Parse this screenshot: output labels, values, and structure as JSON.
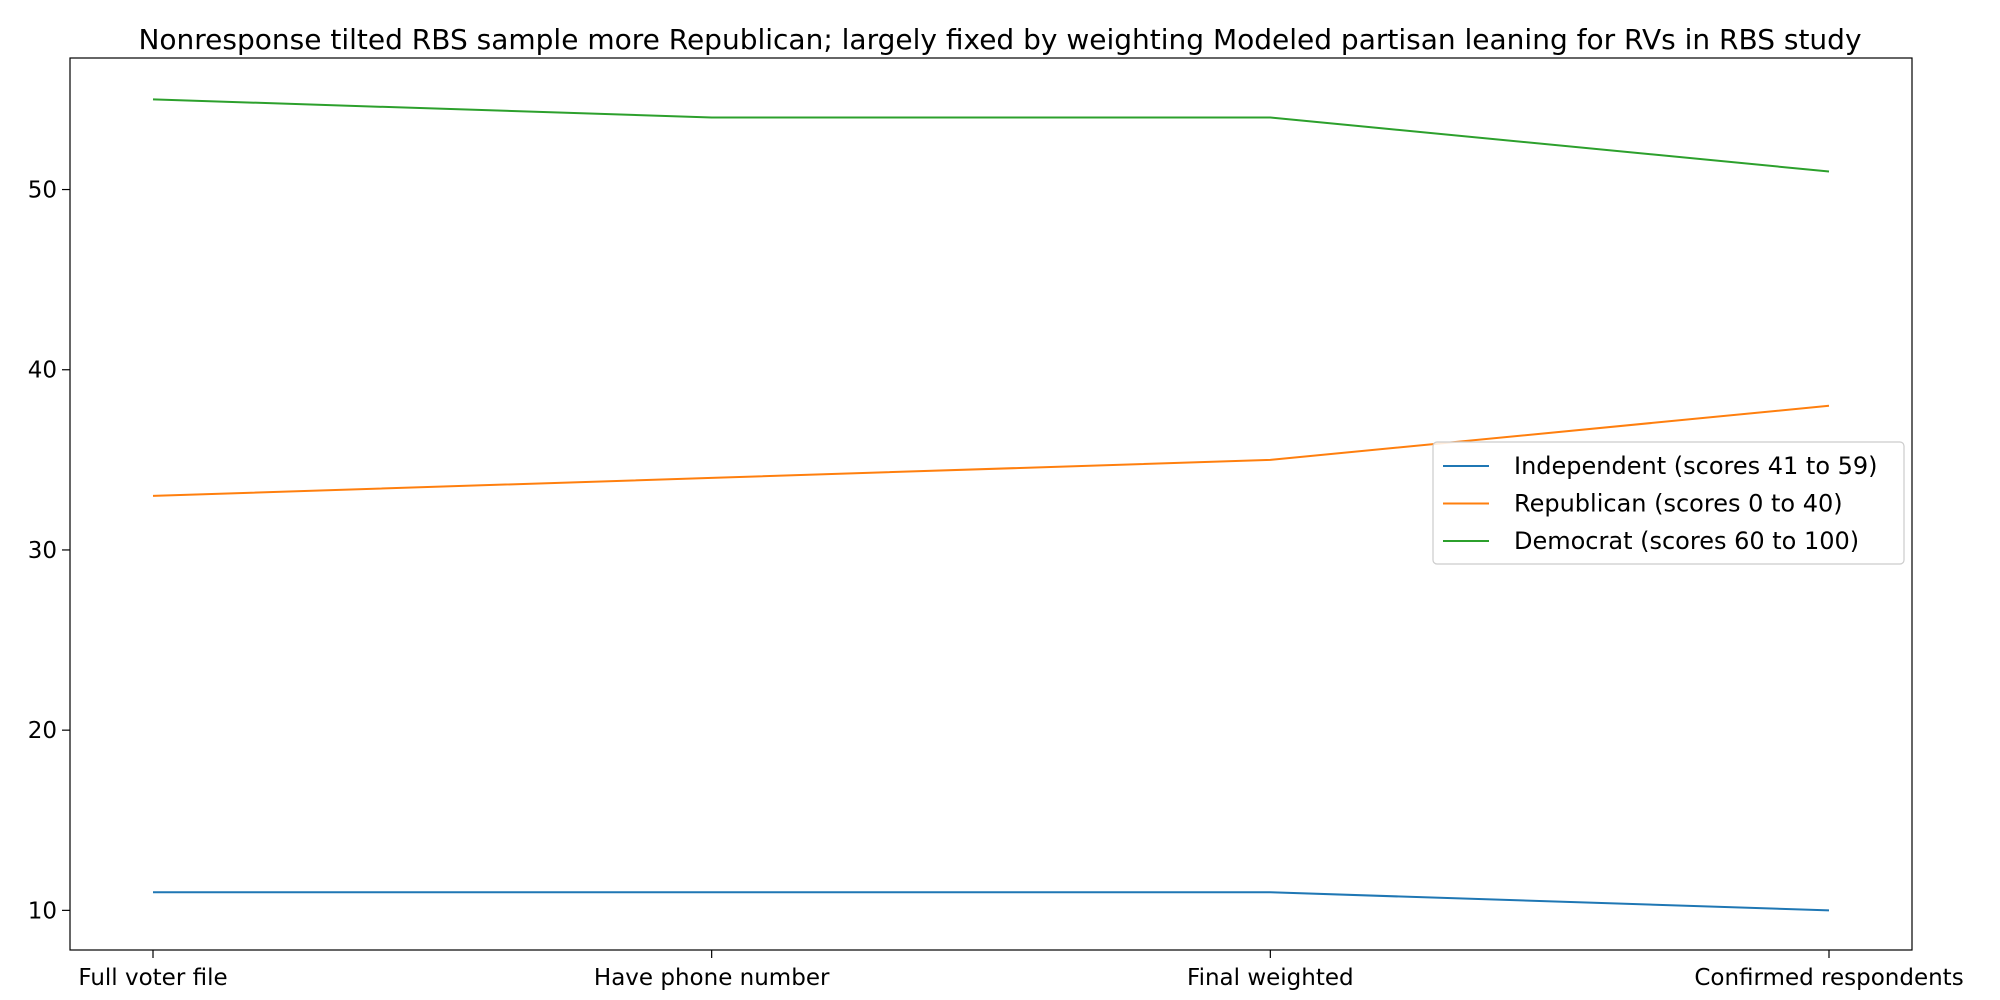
{
  "chart_data": {
    "type": "line",
    "title": "Nonresponse tilted RBS sample more Republican; largely fixed by weighting Modeled partisan leaning for RVs in RBS study",
    "xlabel": "",
    "ylabel": "",
    "categories": [
      "Full voter file",
      "Have phone number",
      "Final weighted",
      "Confirmed respondents"
    ],
    "ylim": [
      7.8,
      57.3
    ],
    "yticks": [
      10,
      20,
      30,
      40,
      50
    ],
    "grid": false,
    "legend_position": "center-right",
    "series": [
      {
        "name": "Independent (scores 41 to 59)",
        "color": "#1f77b4",
        "values": [
          11,
          11,
          11,
          10
        ]
      },
      {
        "name": "Republican (scores 0 to 40)",
        "color": "#ff7f0e",
        "values": [
          33,
          34,
          35,
          38
        ]
      },
      {
        "name": "Democrat (scores 60 to 100)",
        "color": "#2ca02c",
        "values": [
          55,
          54,
          54,
          51
        ]
      }
    ]
  }
}
